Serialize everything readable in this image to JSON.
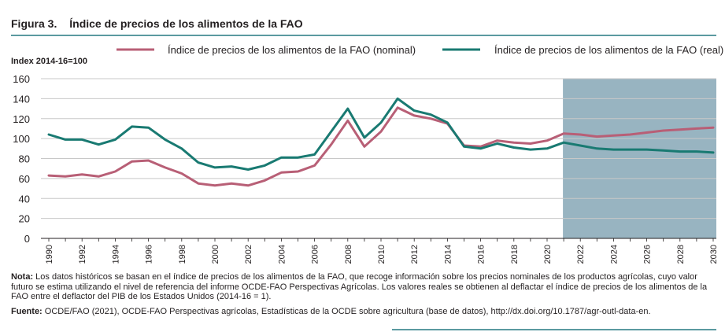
{
  "figure": {
    "number": "Figura 3.",
    "title": "Índice de precios de los alimentos de la FAO"
  },
  "chart_data": {
    "type": "line",
    "title": "Índice de precios de los alimentos de la FAO",
    "ylabel": "Index 2014-16=100",
    "xlabel": "",
    "ylim": [
      0,
      160
    ],
    "yticks": [
      0,
      20,
      40,
      60,
      80,
      100,
      120,
      140,
      160
    ],
    "xlim": [
      1990,
      2030
    ],
    "xticks": [
      1990,
      1992,
      1994,
      1996,
      1998,
      2000,
      2002,
      2004,
      2006,
      2008,
      2010,
      2012,
      2014,
      2016,
      2018,
      2020,
      2022,
      2024,
      2026,
      2028,
      2030
    ],
    "grid": "horizontal",
    "legend_position": "top",
    "projection_shading": {
      "from": 2021,
      "to": 2030,
      "color": "#98b4c1"
    },
    "x": [
      1990,
      1991,
      1992,
      1993,
      1994,
      1995,
      1996,
      1997,
      1998,
      1999,
      2000,
      2001,
      2002,
      2003,
      2004,
      2005,
      2006,
      2007,
      2008,
      2009,
      2010,
      2011,
      2012,
      2013,
      2014,
      2015,
      2016,
      2017,
      2018,
      2019,
      2020,
      2021,
      2022,
      2023,
      2024,
      2025,
      2026,
      2027,
      2028,
      2029,
      2030
    ],
    "series": [
      {
        "name": "Índice de precios de los alimentos de la FAO (nominal)",
        "color": "#b85f76",
        "values": [
          63,
          62,
          64,
          62,
          67,
          77,
          78,
          71,
          65,
          55,
          53,
          55,
          53,
          58,
          66,
          67,
          73,
          94,
          118,
          92,
          107,
          131,
          123,
          120,
          115,
          93,
          92,
          98,
          96,
          95,
          98,
          105,
          104,
          102,
          103,
          104,
          106,
          108,
          109,
          110,
          111
        ]
      },
      {
        "name": "Índice de precios de los alimentos de la FAO (real)",
        "color": "#197a72",
        "values": [
          104,
          99,
          99,
          94,
          99,
          112,
          111,
          99,
          90,
          76,
          71,
          72,
          69,
          73,
          81,
          81,
          84,
          107,
          130,
          101,
          116,
          140,
          128,
          124,
          116,
          92,
          90,
          95,
          91,
          89,
          90,
          96,
          93,
          90,
          89,
          89,
          89,
          88,
          87,
          87,
          86
        ]
      }
    ]
  },
  "notes": {
    "nota_label": "Nota:",
    "nota_text": "Los datos históricos se basan en el índice de precios de los alimentos de la FAO, que recoge información sobre los precios nominales de los productos agrícolas, cuyo valor futuro se estima utilizando el nivel de referencia del informe OCDE-FAO Perspectivas Agrícolas. Los valores reales se obtienen al deflactar el índice de precios de los alimentos de la FAO entre el deflactor del PIB de los Estados Unidos (2014-16 = 1).",
    "fuente_label": "Fuente:",
    "fuente_text": "OCDE/FAO (2021), OCDE-FAO Perspectivas agrícolas, Estadísticas de la OCDE sobre agricultura (base de datos), http://dx.doi.org/10.1787/agr-outl-data-en."
  }
}
